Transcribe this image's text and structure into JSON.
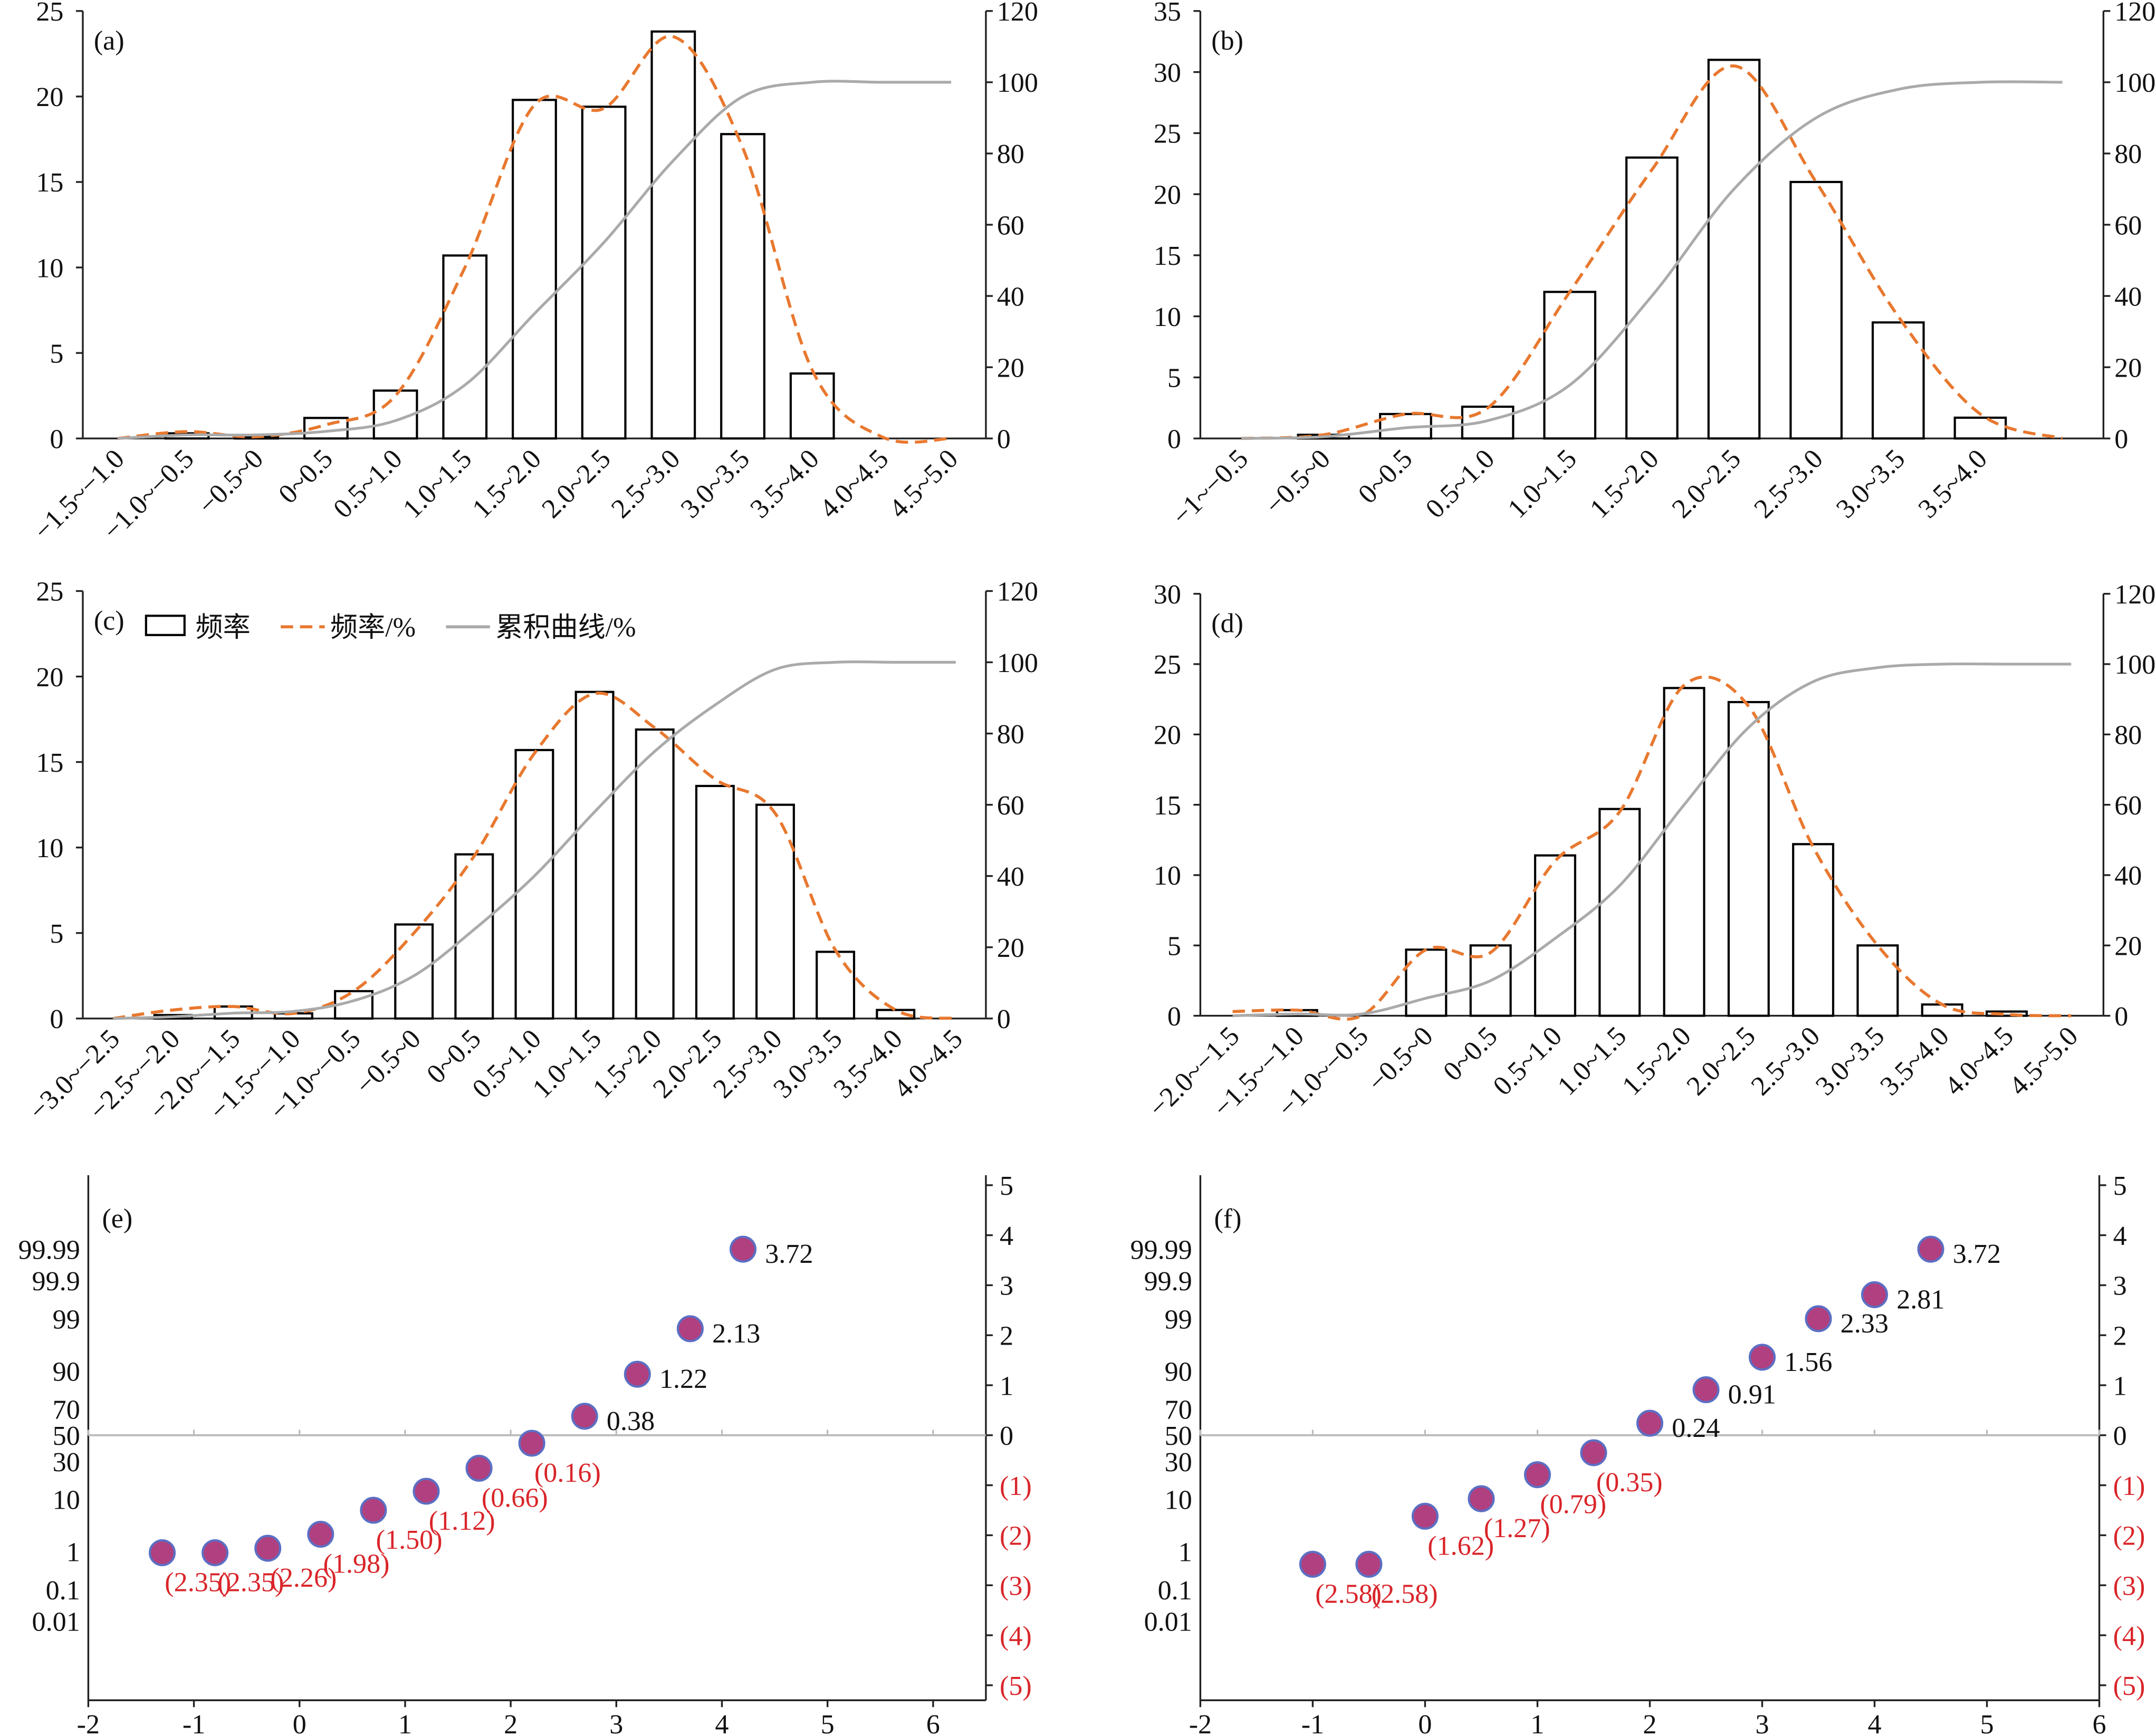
{
  "chart_data": [
    {
      "type": "bar",
      "panel_label": "(a)",
      "categories": [
        "−1.5~−1.0",
        "−1.0~−0.5",
        "−0.5~0",
        "0~0.5",
        "0.5~1.0",
        "1.0~1.5",
        "1.5~2.0",
        "2.0~2.5",
        "2.5~3.0",
        "3.0~3.5",
        "3.5~4.0",
        "4.0~4.5",
        "4.5~5.0"
      ],
      "series": [
        {
          "type": "bar",
          "color": "#000000",
          "values": [
            0,
            0.3,
            0.1,
            1.2,
            2.8,
            10.7,
            19.8,
            19.4,
            23.8,
            17.8,
            3.8,
            0,
            0
          ]
        },
        {
          "type": "line",
          "dash": true,
          "color": "#e8782f",
          "values": [
            0,
            0.4,
            0.1,
            0.8,
            2.5,
            10,
            19.5,
            19.3,
            23.5,
            17,
            4,
            0.1,
            0
          ]
        },
        {
          "type": "line",
          "axis": "y2",
          "color": "#aaaaaa",
          "values": [
            0,
            1,
            1,
            2,
            5,
            15,
            35,
            55,
            78,
            96,
            100,
            100,
            100
          ]
        }
      ],
      "ylim": [
        0,
        25
      ],
      "yticks": [
        0,
        5,
        10,
        15,
        20,
        25
      ],
      "y2lim": [
        0,
        120
      ],
      "y2ticks": [
        0,
        20,
        40,
        60,
        80,
        100,
        120
      ]
    },
    {
      "type": "bar",
      "panel_label": "(b)",
      "categories": [
        "−1~−0.5",
        "−0.5~0",
        "0~0.5",
        "0.5~1.0",
        "1.0~1.5",
        "1.5~2.0",
        "2.0~2.5",
        "2.5~3.0",
        "3.0~3.5",
        "3.5~4.0",
        null
      ],
      "series": [
        {
          "type": "bar",
          "color": "#000000",
          "values": [
            0,
            0.3,
            2,
            2.6,
            12,
            23,
            31,
            21,
            9.5,
            1.7,
            0
          ]
        },
        {
          "type": "line",
          "dash": true,
          "color": "#e8782f",
          "values": [
            0,
            0.3,
            2,
            2.5,
            12,
            22,
            30.5,
            21,
            10,
            2,
            0
          ]
        },
        {
          "type": "line",
          "axis": "y2",
          "color": "#aaaaaa",
          "values": [
            0,
            0.5,
            3,
            5,
            15,
            40,
            70,
            90,
            98,
            100,
            100
          ]
        }
      ],
      "ylim": [
        0,
        35
      ],
      "yticks": [
        0,
        5,
        10,
        15,
        20,
        25,
        30,
        35
      ],
      "y2lim": [
        0,
        120
      ],
      "y2ticks": [
        0,
        20,
        40,
        60,
        80,
        100,
        120
      ]
    },
    {
      "type": "bar",
      "panel_label": "(c)",
      "categories": [
        "−3.0~−2.5",
        "−2.5~−2.0",
        "−2.0~−1.5",
        "−1.5~−1.0",
        "−1.0~−0.5",
        "−0.5~0",
        "0~0.5",
        "0.5~1.0",
        "1.0~1.5",
        "1.5~2.0",
        "2.0~2.5",
        "2.5~3.0",
        "3.0~3.5",
        "3.5~4.0",
        "4.0~4.5"
      ],
      "series": [
        {
          "name": "频率",
          "type": "bar",
          "color": "#000000",
          "values": [
            0,
            0.2,
            0.7,
            0.3,
            1.6,
            5.5,
            9.6,
            15.7,
            19.1,
            16.9,
            13.6,
            12.5,
            3.9,
            0.5,
            0
          ]
        },
        {
          "name": "频率/%",
          "type": "line",
          "dash": true,
          "color": "#e8782f",
          "values": [
            0,
            0.5,
            0.7,
            0.3,
            1.6,
            5,
            9.5,
            15.5,
            19,
            17,
            14,
            12,
            4,
            0.5,
            0
          ]
        },
        {
          "name": "累积曲线/%",
          "type": "line",
          "axis": "y2",
          "color": "#aaaaaa",
          "values": [
            0,
            0.5,
            1.5,
            2,
            5,
            12,
            25,
            40,
            58,
            75,
            88,
            98,
            100,
            100,
            100
          ]
        }
      ],
      "ylim": [
        0,
        25
      ],
      "yticks": [
        0,
        5,
        10,
        15,
        20,
        25
      ],
      "y2lim": [
        0,
        120
      ],
      "y2ticks": [
        0,
        20,
        40,
        60,
        80,
        100,
        120
      ]
    },
    {
      "type": "bar",
      "panel_label": "(d)",
      "categories": [
        "−2.0~−1.5",
        "−1.5~−1.0",
        "−1.0~−0.5",
        "−0.5~0",
        "0~0.5",
        "0.5~1.0",
        "1.0~1.5",
        "1.5~2.0",
        "2.0~2.5",
        "2.5~3.0",
        "3.0~3.5",
        "3.5~4.0",
        "4.0~4.5",
        "4.5~5.0"
      ],
      "series": [
        {
          "type": "bar",
          "color": "#000000",
          "values": [
            0,
            0.4,
            0,
            4.7,
            5.0,
            11.4,
            14.7,
            23.3,
            22.3,
            12.2,
            5,
            0.8,
            0.3,
            0
          ]
        },
        {
          "type": "line",
          "dash": true,
          "color": "#e8782f",
          "values": [
            0.3,
            0.4,
            0,
            4.7,
            4.5,
            11,
            14.5,
            23.5,
            22,
            12,
            5,
            0.8,
            0.1,
            0
          ]
        },
        {
          "type": "line",
          "axis": "y2",
          "color": "#aaaaaa",
          "values": [
            0,
            0.5,
            0.5,
            5,
            10,
            22,
            37,
            60,
            82,
            95,
            99,
            100,
            100,
            100
          ]
        }
      ],
      "ylim": [
        0,
        30
      ],
      "yticks": [
        0,
        5,
        10,
        15,
        20,
        25,
        30
      ],
      "y2lim": [
        0,
        120
      ],
      "y2ticks": [
        0,
        20,
        40,
        60,
        80,
        100,
        120
      ]
    },
    {
      "type": "scatter",
      "panel_label": "(e)",
      "x": [
        -1.3,
        -0.8,
        -0.3,
        0.2,
        0.7,
        1.2,
        1.7,
        2.2,
        2.7,
        3.2,
        3.7,
        4.2
      ],
      "series": [
        {
          "axis": "y2",
          "color": "#b0407f",
          "edgecolor": "#5b6fc4",
          "negative_color": "#d9252a",
          "values": [
            -2.35,
            -2.35,
            -2.26,
            -1.98,
            -1.5,
            -1.12,
            -0.66,
            -0.16,
            0.38,
            1.22,
            2.13,
            3.72
          ],
          "value_labels": [
            "(2.35)",
            "(2.35)",
            "(2.26)",
            "(1.98)",
            "(1.50)",
            "(1.12)",
            "(0.66)",
            "(0.16)",
            "0.38",
            "1.22",
            "2.13",
            "3.72"
          ]
        }
      ],
      "xlim": [
        -2,
        6.5
      ],
      "xticks": [
        -2,
        -1,
        0,
        1,
        2,
        3,
        4,
        5,
        6
      ],
      "yscale": "probit",
      "yticks": [
        0.01,
        0.1,
        1,
        10,
        30,
        50,
        70,
        90,
        99,
        99.9,
        99.99
      ],
      "y2lim": [
        -5.3,
        5.2
      ],
      "y2ticks": [
        5,
        4,
        3,
        2,
        1,
        0,
        {
          "value": -1,
          "label": "(1)"
        },
        {
          "value": -2,
          "label": "(2)"
        },
        {
          "value": -3,
          "label": "(3)"
        },
        {
          "value": -4,
          "label": "(4)"
        },
        {
          "value": -5,
          "label": "(5)"
        }
      ]
    },
    {
      "type": "scatter",
      "panel_label": "(f)",
      "x": [
        -1.0,
        -0.5,
        0,
        0.5,
        1.0,
        1.5,
        2.0,
        2.5,
        3.0,
        3.5,
        4.0,
        4.5
      ],
      "series": [
        {
          "axis": "y2",
          "color": "#b0407f",
          "edgecolor": "#5b6fc4",
          "negative_color": "#d9252a",
          "values": [
            -2.58,
            -2.58,
            -1.62,
            -1.27,
            -0.79,
            -0.35,
            0.24,
            0.91,
            1.56,
            2.33,
            2.81,
            3.72
          ],
          "value_labels": [
            "(2.58)",
            "(2.58)",
            "(1.62)",
            "(1.27)",
            "(0.79)",
            "(0.35)",
            "0.24",
            "0.91",
            "1.56",
            "2.33",
            "2.81",
            "3.72"
          ]
        }
      ],
      "xlim": [
        -2,
        6
      ],
      "xticks": [
        -2,
        -1,
        0,
        1,
        2,
        3,
        4,
        5,
        6
      ],
      "yscale": "probit",
      "yticks": [
        0.01,
        0.1,
        1,
        10,
        30,
        50,
        70,
        90,
        99,
        99.9,
        99.99
      ],
      "y2lim": [
        -5.3,
        5.2
      ],
      "y2ticks": [
        5,
        4,
        3,
        2,
        1,
        0,
        {
          "value": -1,
          "label": "(1)"
        },
        {
          "value": -2,
          "label": "(2)"
        },
        {
          "value": -3,
          "label": "(3)"
        },
        {
          "value": -4,
          "label": "(4)"
        },
        {
          "value": -5,
          "label": "(5)"
        }
      ]
    }
  ]
}
